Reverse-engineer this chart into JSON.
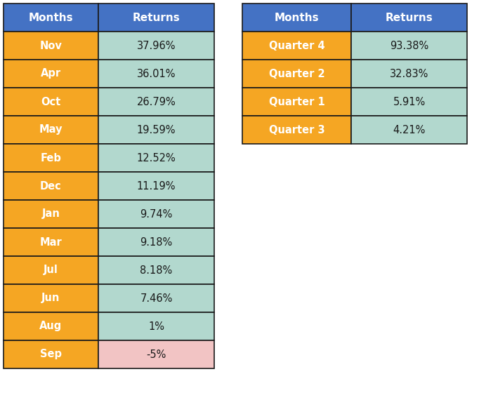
{
  "monthly": {
    "months": [
      "Nov",
      "Apr",
      "Oct",
      "May",
      "Feb",
      "Dec",
      "Jan",
      "Mar",
      "Jul",
      "Jun",
      "Aug",
      "Sep"
    ],
    "returns": [
      "37.96%",
      "36.01%",
      "26.79%",
      "19.59%",
      "12.52%",
      "11.19%",
      "9.74%",
      "9.18%",
      "8.18%",
      "7.46%",
      "1%",
      "-5%"
    ],
    "row_bg_month": "#F5A623",
    "row_bg_positive": "#B2D8CE",
    "row_bg_negative": "#F2C4C4",
    "header_bg": "#4472C4",
    "header_text": "#FFFFFF",
    "month_text": "#FFFFFF",
    "return_text": "#1A1A1A"
  },
  "quarterly": {
    "quarters": [
      "Quarter 4",
      "Quarter 2",
      "Quarter 1",
      "Quarter 3"
    ],
    "returns": [
      "93.38%",
      "32.83%",
      "5.91%",
      "4.21%"
    ],
    "row_bg_quarter": "#F5A623",
    "row_bg_positive": "#B2D8CE",
    "header_bg": "#4472C4",
    "header_text": "#FFFFFF",
    "quarter_text": "#FFFFFF",
    "return_text": "#1A1A1A"
  },
  "header_font_size": 11,
  "font_size": 10.5,
  "border_color": "#1A1A1A",
  "border_lw": 1.2,
  "fig_width": 6.82,
  "fig_height": 5.6,
  "dpi": 100
}
